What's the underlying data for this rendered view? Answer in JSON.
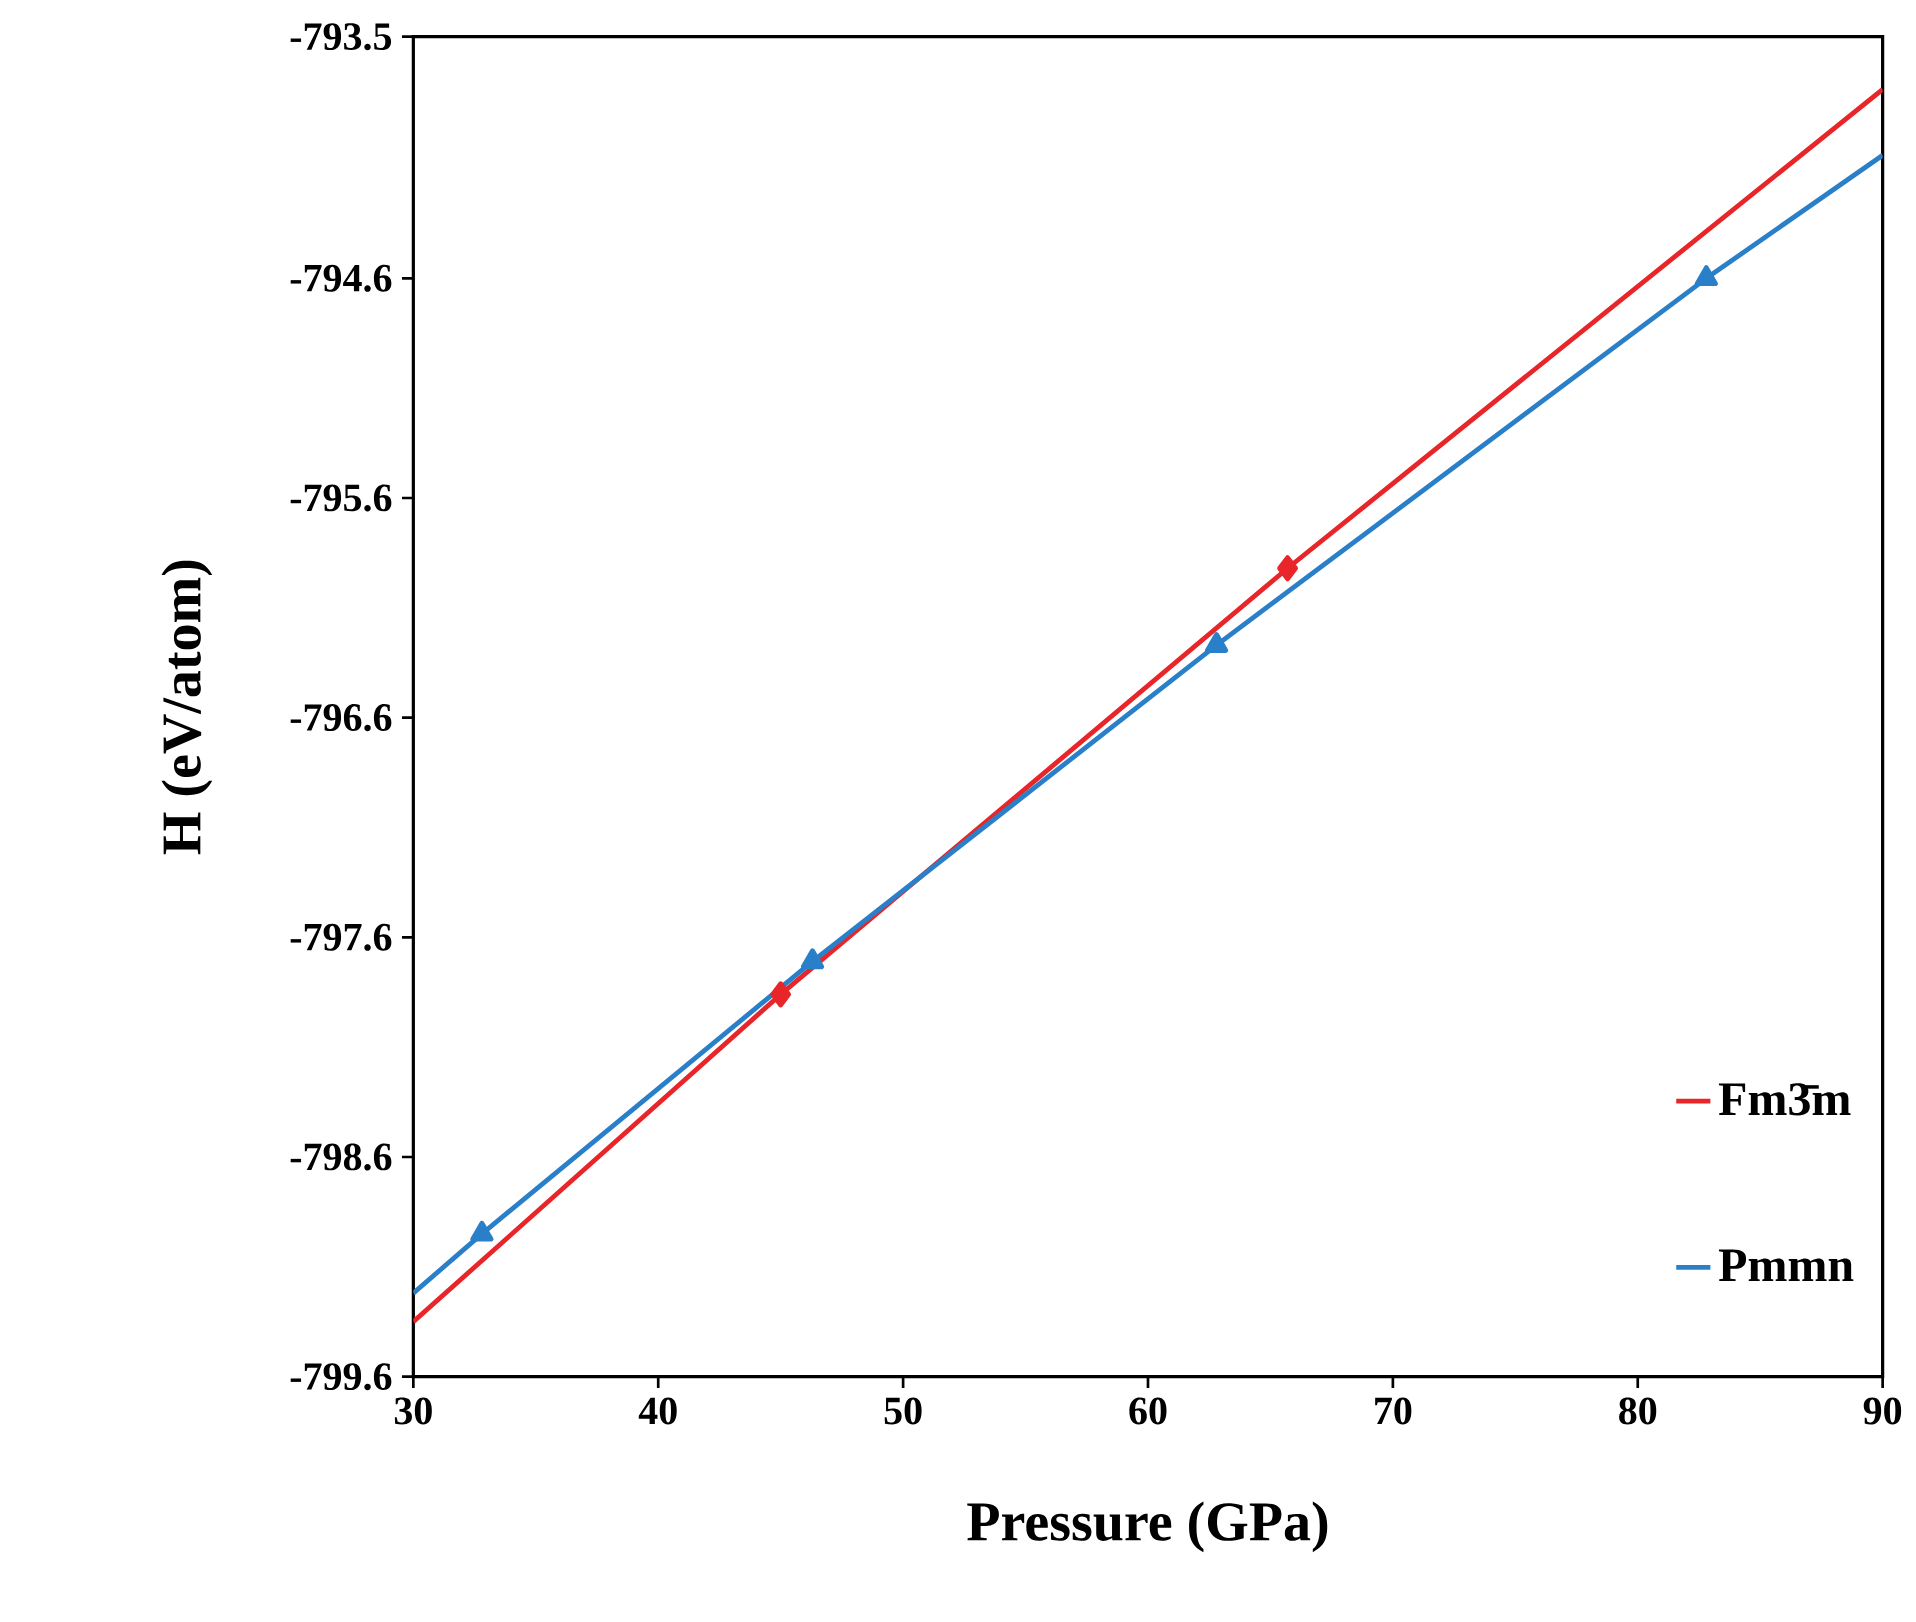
{
  "chart_data": {
    "type": "line",
    "xlabel": "Pressure (GPa)",
    "ylabel": "H (eV/atom)",
    "xlim": [
      30,
      90
    ],
    "xticks": [
      30,
      40,
      50,
      60,
      70,
      80,
      90
    ],
    "ylim": [
      -799.6,
      -793.5
    ],
    "yticks": [
      -799.6,
      -798.6,
      -797.6,
      -796.6,
      -795.6,
      -794.6,
      -793.5
    ],
    "grid": false,
    "legend": "bottom right",
    "series": [
      {
        "name": "Fm3̄m",
        "color": "#e8262a",
        "marker": "diamond",
        "x": [
          30,
          45,
          65.7,
          90
        ],
        "values": [
          -799.35,
          -797.86,
          -795.92,
          -793.74
        ]
      },
      {
        "name": "Pmmn",
        "color": "#2a7fc9",
        "marker": "triangle",
        "x": [
          30,
          32.8,
          46.3,
          62.8,
          82.8,
          90
        ],
        "values": [
          -799.22,
          -798.95,
          -797.71,
          -796.27,
          -794.6,
          -794.04
        ]
      }
    ]
  }
}
